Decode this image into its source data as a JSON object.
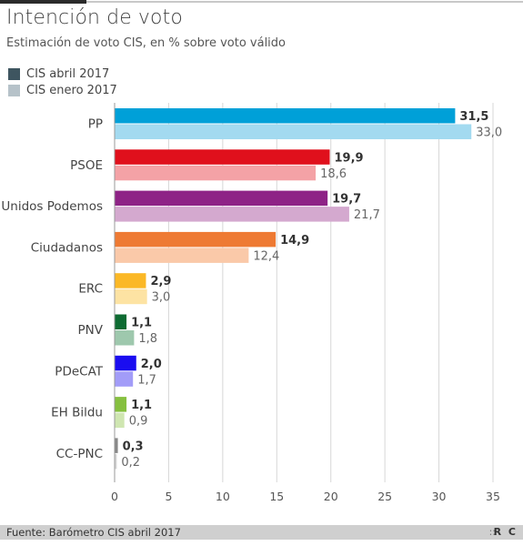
{
  "chart_data": {
    "type": "bar",
    "orientation": "horizontal",
    "title": "Intención de voto",
    "subtitle": "Estimación de voto CIS, en % sobre voto válido",
    "categories": [
      "PP",
      "PSOE",
      "Unidos Podemos",
      "Ciudadanos",
      "ERC",
      "PNV",
      "PDeCAT",
      "EH Bildu",
      "CC-PNC"
    ],
    "series": [
      {
        "name": "CIS abril 2017",
        "values": [
          31.5,
          19.9,
          19.7,
          14.9,
          2.9,
          1.1,
          2.0,
          1.1,
          0.3
        ],
        "labels": [
          "31,5",
          "19,9",
          "19,7",
          "14,9",
          "2,9",
          "1,1",
          "2,0",
          "1,1",
          "0,3"
        ],
        "colors": [
          "#00a0d8",
          "#e0101c",
          "#8e2386",
          "#ee7a33",
          "#fbb826",
          "#0e6b32",
          "#1a0df0",
          "#86c03f",
          "#888888"
        ]
      },
      {
        "name": "CIS enero 2017",
        "values": [
          33.0,
          18.6,
          21.7,
          12.4,
          3.0,
          1.8,
          1.7,
          0.9,
          0.2
        ],
        "labels": [
          "33,0",
          "18,6",
          "21,7",
          "12,4",
          "3,0",
          "1,8",
          "1,7",
          "0,9",
          "0,2"
        ],
        "colors": [
          "#a3daf0",
          "#f4a2a6",
          "#d4a9cf",
          "#fac9a9",
          "#fde3a3",
          "#9ec8ad",
          "#a29cf8",
          "#cfe6b1",
          "#d5d5d5"
        ]
      }
    ],
    "xlim": [
      0,
      35
    ],
    "xticks": [
      "0",
      "5",
      "10",
      "15",
      "20",
      "25",
      "30",
      "35"
    ],
    "grid": true,
    "legend": [
      {
        "label": "CIS abril 2017",
        "color": "#3e5560"
      },
      {
        "label": "CIS enero 2017",
        "color": "#b6c2c9"
      }
    ]
  },
  "footer": {
    "source": "Fuente: Barómetro CIS abril 2017",
    "logo": "R C"
  }
}
